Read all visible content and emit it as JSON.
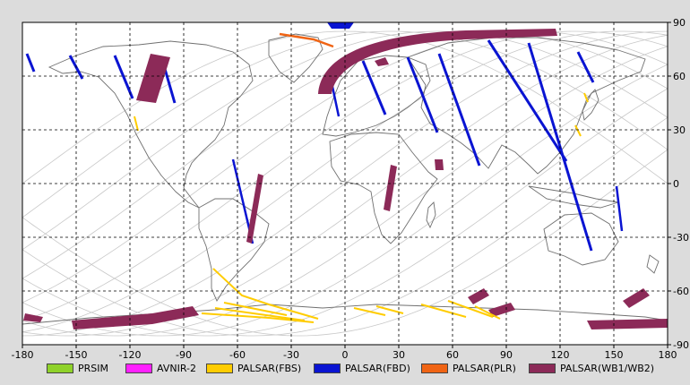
{
  "map": {
    "y_ticks": [
      "90",
      "60",
      "30",
      "0",
      "-30",
      "-60",
      "-90"
    ],
    "x_ticks": [
      "-180",
      "-150",
      "-120",
      "-90",
      "-60",
      "-30",
      "0",
      "30",
      "60",
      "90",
      "120",
      "150",
      "180"
    ]
  },
  "legend": [
    {
      "label": "PRSIM",
      "color": "#8fd22a"
    },
    {
      "label": "AVNIR-2",
      "color": "#ff20ff"
    },
    {
      "label": "PALSAR(FBS)",
      "color": "#ffcc00"
    },
    {
      "label": "PALSAR(FBD)",
      "color": "#0a14d2"
    },
    {
      "label": "PALSAR(PLR)",
      "color": "#f06414"
    },
    {
      "label": "PALSAR(WB1/WB2)",
      "color": "#8c2a58"
    }
  ],
  "colors": {
    "background": "#dcdcdc",
    "map_bg": "#ffffff",
    "coast": "#707070",
    "orbit": "#c8c8c8",
    "grid": "#000000"
  }
}
